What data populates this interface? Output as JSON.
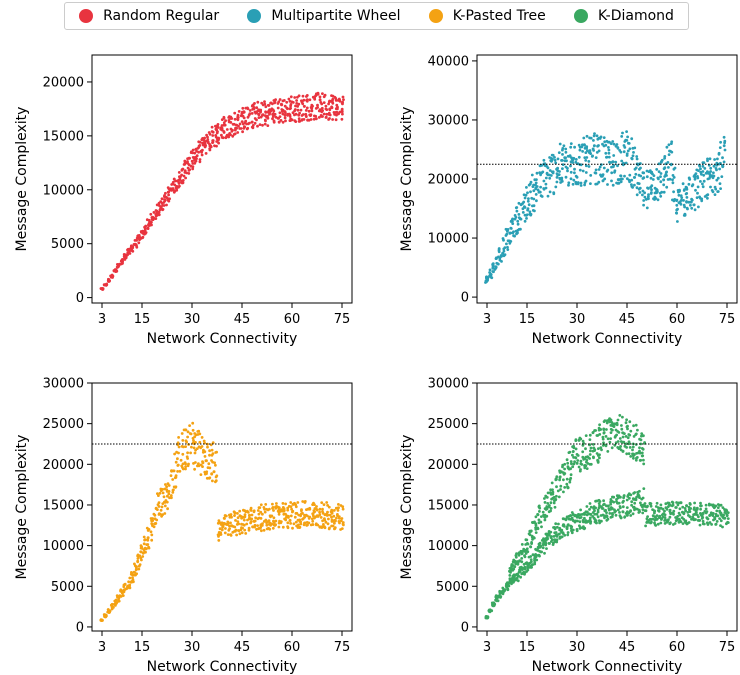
{
  "legend": {
    "items": [
      {
        "label": "Random Regular",
        "color": "#e8343f"
      },
      {
        "label": "Multipartite Wheel",
        "color": "#2a9fb5"
      },
      {
        "label": "K-Pasted Tree",
        "color": "#f4a213"
      },
      {
        "label": "K-Diamond",
        "color": "#3aa861"
      }
    ]
  },
  "chart_data": [
    {
      "type": "scatter",
      "series_name": "Random Regular",
      "color": "#e8343f",
      "xlabel": "Network Connectivity",
      "ylabel": "Message Complexity",
      "xlim": [
        0,
        78
      ],
      "ylim": [
        -500,
        22500
      ],
      "xticks": [
        3,
        15,
        30,
        45,
        60,
        75
      ],
      "yticks": [
        0,
        5000,
        10000,
        15000,
        20000
      ],
      "reference_line": 22500,
      "trend": [
        [
          3,
          800
        ],
        [
          6,
          2000
        ],
        [
          10,
          3800
        ],
        [
          15,
          5800
        ],
        [
          20,
          8200
        ],
        [
          25,
          10500
        ],
        [
          30,
          12800
        ],
        [
          35,
          14600
        ],
        [
          40,
          15800
        ],
        [
          45,
          16500
        ],
        [
          50,
          17000
        ],
        [
          60,
          17500
        ],
        [
          70,
          17800
        ],
        [
          75,
          17600
        ]
      ],
      "spread": 0.07
    },
    {
      "type": "scatter",
      "series_name": "Multipartite Wheel",
      "color": "#2a9fb5",
      "xlabel": "Network Connectivity",
      "ylabel": "Message Complexity",
      "xlim": [
        0,
        78
      ],
      "ylim": [
        -1000,
        41000
      ],
      "xticks": [
        3,
        15,
        30,
        45,
        60,
        75
      ],
      "yticks": [
        0,
        10000,
        20000,
        30000,
        40000
      ],
      "reference_line": 22500,
      "trend": [
        [
          3,
          3000
        ],
        [
          6,
          6000
        ],
        [
          10,
          11000
        ],
        [
          15,
          16000
        ],
        [
          20,
          20000
        ],
        [
          25,
          22000
        ],
        [
          30,
          22500
        ],
        [
          35,
          23500
        ],
        [
          40,
          22500
        ],
        [
          45,
          24000
        ],
        [
          50,
          18000
        ],
        [
          55,
          20000
        ],
        [
          58,
          22500
        ],
        [
          60,
          15500
        ],
        [
          65,
          18000
        ],
        [
          70,
          20500
        ],
        [
          74,
          23000
        ]
      ],
      "spread": 0.18
    },
    {
      "type": "scatter",
      "series_name": "K-Pasted Tree",
      "color": "#f4a213",
      "xlabel": "Network Connectivity",
      "ylabel": "Message Complexity",
      "xlim": [
        0,
        78
      ],
      "ylim": [
        -500,
        30000
      ],
      "xticks": [
        3,
        15,
        30,
        45,
        60,
        75
      ],
      "yticks": [
        0,
        5000,
        10000,
        15000,
        20000,
        25000,
        30000
      ],
      "reference_line": 22500,
      "trend": [
        [
          3,
          800
        ],
        [
          5,
          2000
        ],
        [
          8,
          3500
        ],
        [
          12,
          6000
        ],
        [
          15,
          9000
        ],
        [
          18,
          12000
        ],
        [
          20,
          15000
        ],
        [
          23,
          16000
        ],
        [
          26,
          21000
        ],
        [
          30,
          22500
        ],
        [
          33,
          21000
        ],
        [
          37,
          20000
        ],
        [
          38,
          12000
        ],
        [
          45,
          13000
        ],
        [
          55,
          13700
        ],
        [
          65,
          13800
        ],
        [
          75,
          13600
        ]
      ],
      "spread": 0.12
    },
    {
      "type": "scatter",
      "series_name": "K-Diamond",
      "color": "#3aa861",
      "xlabel": "Network Connectivity",
      "ylabel": "Message Complexity",
      "xlim": [
        0,
        78
      ],
      "ylim": [
        -500,
        30000
      ],
      "xticks": [
        3,
        15,
        30,
        45,
        60,
        75
      ],
      "yticks": [
        0,
        5000,
        10000,
        15000,
        20000,
        25000,
        30000
      ],
      "reference_line": 22500,
      "trend": [
        [
          3,
          1200
        ],
        [
          6,
          3500
        ],
        [
          10,
          5500
        ],
        [
          15,
          7500
        ],
        [
          20,
          10000
        ],
        [
          25,
          12000
        ],
        [
          30,
          13000
        ],
        [
          35,
          14000
        ],
        [
          40,
          14500
        ],
        [
          45,
          15000
        ],
        [
          50,
          15500
        ],
        [
          51,
          13800
        ],
        [
          60,
          14000
        ],
        [
          70,
          13800
        ],
        [
          75,
          13600
        ]
      ],
      "upper_trend": [
        [
          10,
          7000
        ],
        [
          15,
          10000
        ],
        [
          20,
          14500
        ],
        [
          25,
          17500
        ],
        [
          30,
          21000
        ],
        [
          35,
          22000
        ],
        [
          40,
          24000
        ],
        [
          45,
          23500
        ],
        [
          50,
          22000
        ]
      ],
      "spread": 0.1
    }
  ]
}
